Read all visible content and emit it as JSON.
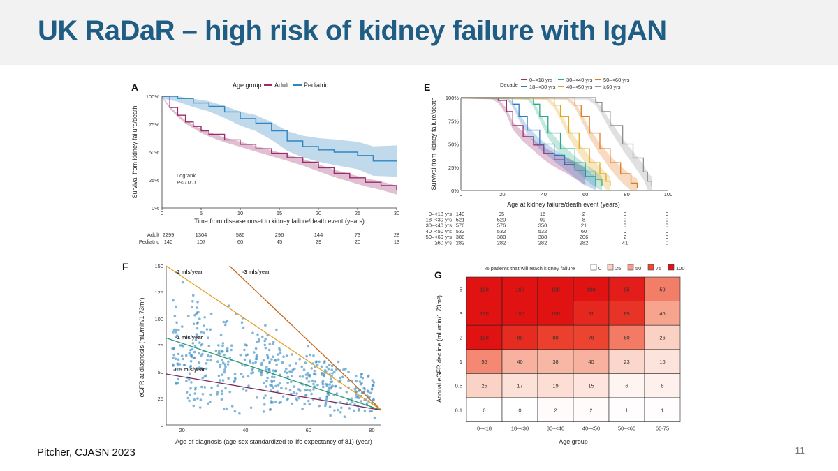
{
  "slide": {
    "title": "UK RaDaR – high risk of kidney failure with IgAN",
    "citation": "Pitcher, CJASN 2023",
    "page_number": "11"
  },
  "chart_data": [
    {
      "panel": "A",
      "type": "line",
      "xlabel": "Time from disease onset to kidney failure/death event (years)",
      "ylabel": "Survival from kidney failure/death",
      "xlim": [
        0,
        30
      ],
      "ylim": [
        0,
        100
      ],
      "x_ticks": [
        "0",
        "5",
        "10",
        "15",
        "20",
        "25",
        "30"
      ],
      "y_ticks": [
        "0%",
        "25%",
        "50%",
        "75%",
        "100%"
      ],
      "legend_title": "Age group",
      "legend_position": "top",
      "annotation": [
        "Logrank",
        "P<0.001"
      ],
      "series": [
        {
          "name": "Adult",
          "color": "#9b2c6b",
          "x": [
            0,
            1,
            2,
            3,
            4,
            5,
            6,
            8,
            10,
            12,
            14,
            16,
            18,
            20,
            22,
            24,
            26,
            28,
            30
          ],
          "y": [
            100,
            90,
            83,
            77,
            73,
            69,
            66,
            61,
            57,
            53,
            49,
            45,
            41,
            36,
            31,
            27,
            23,
            20,
            16
          ]
        },
        {
          "name": "Pediatric",
          "color": "#2e86c1",
          "x": [
            0,
            2,
            4,
            6,
            8,
            10,
            12,
            14,
            16,
            18,
            20,
            22,
            25,
            27,
            30
          ],
          "y": [
            100,
            98,
            94,
            91,
            86,
            80,
            76,
            69,
            60,
            55,
            52,
            50,
            47,
            42,
            42
          ]
        }
      ],
      "risk_table": {
        "times": [
          "0",
          "5",
          "10",
          "15",
          "20",
          "25",
          "30"
        ],
        "rows": [
          {
            "label": "Adult",
            "color": "#9b2c6b",
            "values": [
              "2299",
              "1304",
              "586",
              "296",
              "144",
              "73",
              "28"
            ]
          },
          {
            "label": "Pediatric",
            "color": "#2e86c1",
            "values": [
              "140",
              "107",
              "60",
              "45",
              "29",
              "20",
              "13"
            ]
          }
        ]
      }
    },
    {
      "panel": "E",
      "type": "line",
      "xlabel": "Age at kidney failure/death event (years)",
      "ylabel": "Survival from kidney failure/death",
      "xlim": [
        0,
        100
      ],
      "ylim": [
        0,
        100
      ],
      "x_ticks": [
        "0",
        "20",
        "40",
        "60",
        "80",
        "100"
      ],
      "y_ticks": [
        "0%",
        "25%",
        "50%",
        "75%",
        "100%"
      ],
      "legend_title": "Decade",
      "legend_position": "top",
      "series": [
        {
          "name": "0–<18 yrs",
          "color": "#9b2c6b",
          "x": [
            0,
            15,
            18,
            22,
            25,
            30,
            35,
            40,
            45,
            50,
            55,
            60
          ],
          "y": [
            100,
            100,
            97,
            85,
            70,
            58,
            49,
            40,
            33,
            28,
            22,
            15
          ]
        },
        {
          "name": "18–<30 yrs",
          "color": "#2e78c4",
          "x": [
            0,
            22,
            25,
            28,
            32,
            38,
            45,
            50,
            55,
            60,
            65
          ],
          "y": [
            100,
            100,
            93,
            80,
            65,
            50,
            38,
            30,
            22,
            15,
            5
          ]
        },
        {
          "name": "30–<40 yrs",
          "color": "#2aa88a",
          "x": [
            0,
            32,
            35,
            38,
            42,
            48,
            55,
            60,
            65,
            68
          ],
          "y": [
            100,
            100,
            93,
            80,
            62,
            45,
            30,
            20,
            12,
            5
          ]
        },
        {
          "name": "40–<50 yrs",
          "color": "#e0a820",
          "x": [
            0,
            41,
            45,
            48,
            52,
            57,
            62,
            67,
            70,
            72
          ],
          "y": [
            100,
            100,
            92,
            80,
            62,
            45,
            30,
            18,
            10,
            5
          ]
        },
        {
          "name": "50–<60 yrs",
          "color": "#e07a20",
          "x": [
            0,
            51,
            55,
            58,
            62,
            67,
            72,
            77,
            82,
            85
          ],
          "y": [
            100,
            100,
            92,
            80,
            62,
            45,
            30,
            18,
            8,
            3
          ]
        },
        {
          "name": "≥60 yrs",
          "color": "#909090",
          "x": [
            0,
            61,
            65,
            68,
            72,
            78,
            83,
            88,
            90,
            92
          ],
          "y": [
            100,
            100,
            95,
            85,
            70,
            50,
            35,
            20,
            10,
            5
          ]
        }
      ],
      "risk_table": {
        "rows": [
          {
            "label": "0–<18 yrs",
            "color": "#9b2c6b",
            "values": [
              "140",
              "95",
              "16",
              "2",
              "0",
              "0"
            ]
          },
          {
            "label": "18–<30 yrs",
            "color": "#2e78c4",
            "values": [
              "521",
              "520",
              "99",
              "8",
              "0",
              "0"
            ]
          },
          {
            "label": "30–<40 yrs",
            "color": "#2aa88a",
            "values": [
              "576",
              "576",
              "350",
              "21",
              "0",
              "0"
            ]
          },
          {
            "label": "40–<50 yrs",
            "color": "#e0a820",
            "values": [
              "532",
              "532",
              "532",
              "60",
              "0",
              "0"
            ]
          },
          {
            "label": "50–<60 yrs",
            "color": "#e07a20",
            "values": [
              "388",
              "388",
              "388",
              "206",
              "2",
              "0"
            ]
          },
          {
            "label": "≥60 yrs",
            "color": "#909090",
            "values": [
              "282",
              "282",
              "282",
              "282",
              "41",
              "0"
            ]
          }
        ]
      }
    },
    {
      "panel": "F",
      "type": "scatter",
      "xlabel": "Age of diagnosis (age-sex standardized to life expectancy of 81) (year)",
      "ylabel": "eGFR at diagnosis (mL/min/1.73m²)",
      "xlim": [
        15,
        83
      ],
      "ylim": [
        0,
        150
      ],
      "x_ticks": [
        "20",
        "40",
        "60",
        "80"
      ],
      "y_ticks": [
        "0",
        "25",
        "50",
        "75",
        "100",
        "125",
        "150"
      ],
      "point_color": "#3d8fc4",
      "reference_lines": [
        {
          "label": "-3 mls/year",
          "color": "#c8671b",
          "x": [
            35,
            83
          ],
          "y": [
            150,
            14
          ]
        },
        {
          "label": "-2 mls/year",
          "color": "#e2a226",
          "x": [
            15,
            83
          ],
          "y": [
            150,
            14
          ]
        },
        {
          "label": "-1 mls/year",
          "color": "#2a9a6e",
          "x": [
            15,
            83
          ],
          "y": [
            82,
            14
          ]
        },
        {
          "label": "-0.5 mls/year",
          "color": "#7a2a5a",
          "x": [
            15,
            83
          ],
          "y": [
            48,
            14
          ]
        }
      ]
    },
    {
      "panel": "G",
      "type": "heatmap",
      "legend_title": "% patients that will reach kidney failure",
      "legend_position": "top",
      "legend_items": [
        {
          "label": "0",
          "color": "#ffffff"
        },
        {
          "label": "25",
          "color": "#fbd3c6"
        },
        {
          "label": "50",
          "color": "#f69b85"
        },
        {
          "label": "75",
          "color": "#ee4b35"
        },
        {
          "label": "100",
          "color": "#e01212"
        }
      ],
      "xlabel": "Age group",
      "ylabel": "Annual eGFR decline (mL/min/1.73m²)",
      "x_categories": [
        "0–<18",
        "18–<30",
        "30–<40",
        "40–<50",
        "50–<60",
        "60-75"
      ],
      "y_categories": [
        "5",
        "3",
        "2",
        "1",
        "0.5",
        "0.1"
      ],
      "values": [
        [
          100,
          100,
          100,
          100,
          95,
          59
        ],
        [
          100,
          100,
          100,
          91,
          85,
          46
        ],
        [
          100,
          89,
          80,
          78,
          60,
          26
        ],
        [
          56,
          40,
          38,
          40,
          23,
          16
        ],
        [
          25,
          17,
          19,
          15,
          6,
          8
        ],
        [
          0,
          0,
          2,
          2,
          1,
          1
        ]
      ]
    }
  ]
}
